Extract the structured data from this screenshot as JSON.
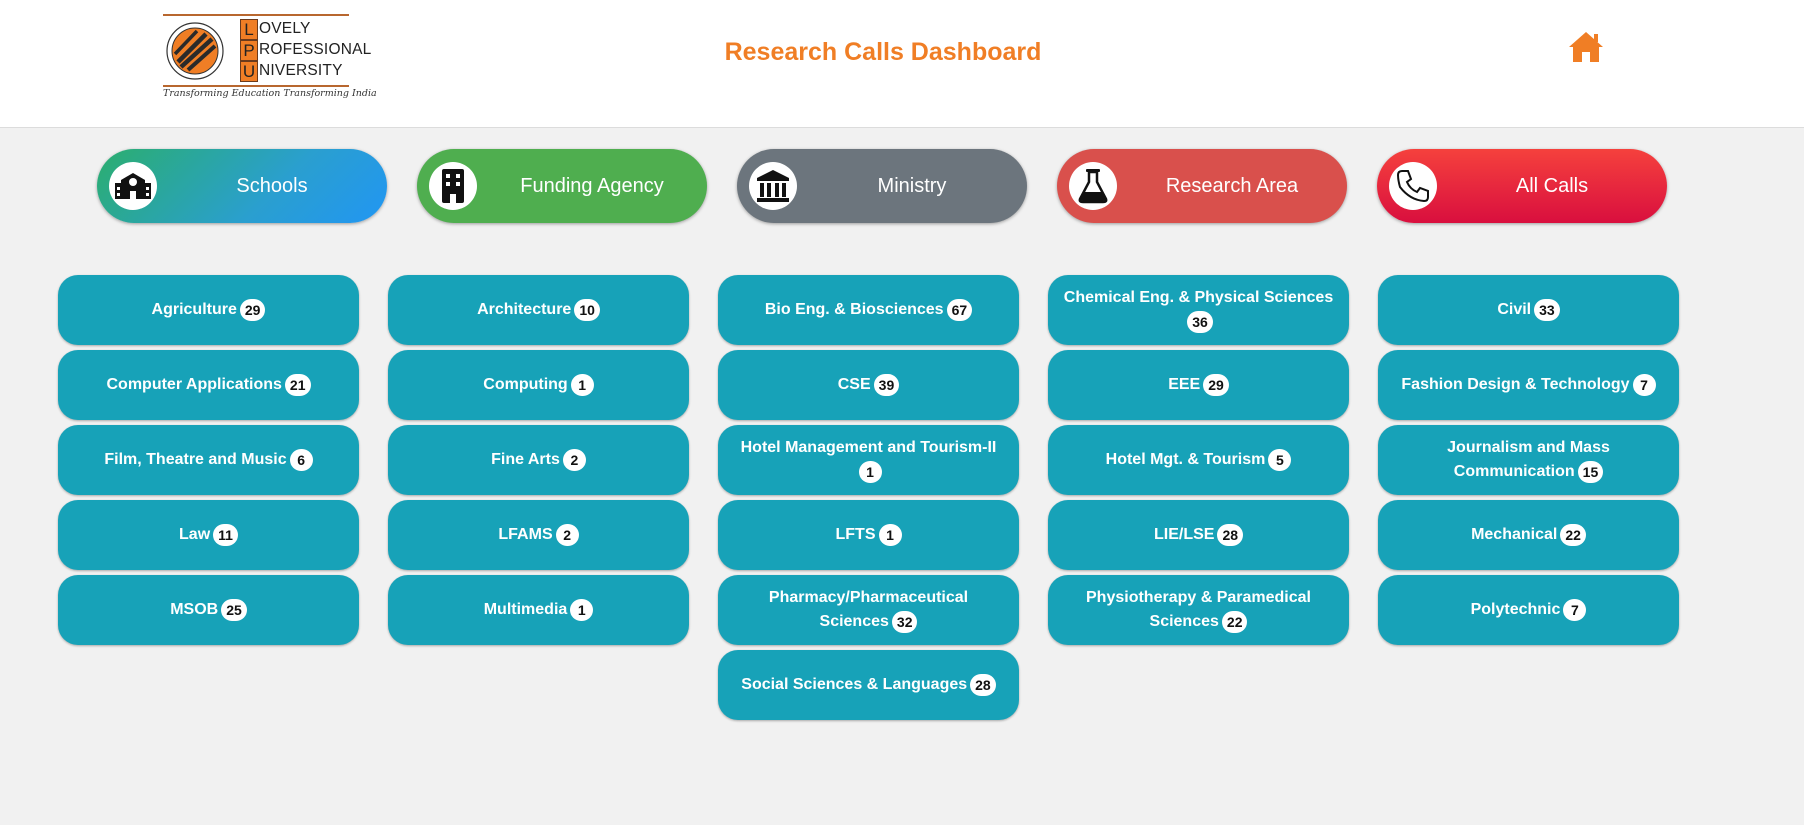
{
  "header": {
    "logo": {
      "rows": [
        {
          "letter": "L",
          "rest": "OVELY"
        },
        {
          "letter": "P",
          "rest": "ROFESSIONAL"
        },
        {
          "letter": "U",
          "rest": "NIVERSITY"
        }
      ],
      "tagline": "Transforming Education Transforming India"
    },
    "title": "Research Calls Dashboard",
    "home_icon": "home-icon"
  },
  "nav": [
    {
      "label": "Schools",
      "icon": "school-icon"
    },
    {
      "label": "Funding Agency",
      "icon": "building-icon"
    },
    {
      "label": "Ministry",
      "icon": "landmark-icon"
    },
    {
      "label": "Research Area",
      "icon": "flask-icon"
    },
    {
      "label": "All Calls",
      "icon": "phone-icon"
    }
  ],
  "columns": [
    [
      {
        "label": "Agriculture",
        "count": "29"
      },
      {
        "label": "Computer Applications",
        "count": "21"
      },
      {
        "label": "Film, Theatre and Music",
        "count": "6"
      },
      {
        "label": "Law",
        "count": "11"
      },
      {
        "label": "MSOB",
        "count": "25"
      }
    ],
    [
      {
        "label": "Architecture",
        "count": "10"
      },
      {
        "label": "Computing",
        "count": "1"
      },
      {
        "label": "Fine Arts",
        "count": "2"
      },
      {
        "label": "LFAMS",
        "count": "2"
      },
      {
        "label": "Multimedia",
        "count": "1"
      }
    ],
    [
      {
        "label": "Bio Eng. & Biosciences",
        "count": "67"
      },
      {
        "label": "CSE",
        "count": "39"
      },
      {
        "label": "Hotel Management and Tourism-II",
        "count": "1"
      },
      {
        "label": "LFTS",
        "count": "1"
      },
      {
        "label": "Pharmacy/Pharmaceutical Sciences",
        "count": "32"
      },
      {
        "label": "Social Sciences & Languages",
        "count": "28"
      }
    ],
    [
      {
        "label": "Chemical Eng. & Physical Sciences",
        "count": "36"
      },
      {
        "label": "EEE",
        "count": "29"
      },
      {
        "label": "Hotel Mgt. & Tourism",
        "count": "5"
      },
      {
        "label": "LIE/LSE",
        "count": "28"
      },
      {
        "label": "Physiotherapy & Paramedical Sciences",
        "count": "22"
      }
    ],
    [
      {
        "label": "Civil",
        "count": "33"
      },
      {
        "label": "Fashion Design & Technology",
        "count": "7"
      },
      {
        "label": "Journalism and Mass Communication",
        "count": "15"
      },
      {
        "label": "Mechanical",
        "count": "22"
      },
      {
        "label": "Polytechnic",
        "count": "7"
      }
    ]
  ],
  "colors": {
    "accent": "#f07e25",
    "button": "#17a2b8",
    "background": "#f1f1f1"
  }
}
